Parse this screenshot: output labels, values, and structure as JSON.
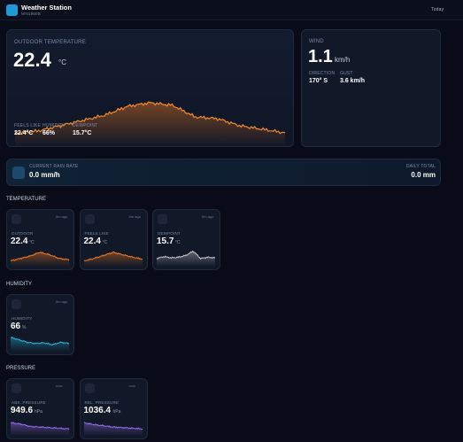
{
  "header": {
    "title": "Weather Station",
    "subtitle": "WN1980B",
    "range": "Today"
  },
  "outdoor": {
    "label": "OUTDOOR TEMPERATURE",
    "value": "22.4",
    "unit": "°C",
    "stats": [
      {
        "label": "FEELS LIKE",
        "value": "22.4°C"
      },
      {
        "label": "HUMIDITY",
        "value": "66%"
      },
      {
        "label": "DEWPOINT",
        "value": "15.7°C"
      }
    ]
  },
  "wind": {
    "label": "WIND",
    "value": "1.1",
    "unit": "km/h",
    "stats": [
      {
        "label": "DIRECTION",
        "value": "170° S"
      },
      {
        "label": "GUST",
        "value": "3.6 km/h"
      }
    ]
  },
  "rain": {
    "label": "CURRENT RAIN RATE",
    "value": "0.0 mm/h",
    "total_label": "DAILY TOTAL",
    "total": "0.0 mm"
  },
  "sections": [
    {
      "title": "TEMPERATURE",
      "cards": [
        {
          "age": "5m ago",
          "label": "OUTDOOR",
          "value": "22.4",
          "unit": "°C"
        },
        {
          "age": "5m ago",
          "label": "FEELS LIKE",
          "value": "22.4",
          "unit": "°C"
        },
        {
          "age": "5m ago",
          "label": "DEWPOINT",
          "value": "15.7",
          "unit": "°C"
        }
      ]
    },
    {
      "title": "HUMIDITY",
      "cards": [
        {
          "age": "5m ago",
          "label": "HUMIDITY",
          "value": "66",
          "unit": "%"
        }
      ]
    },
    {
      "title": "PRESSURE",
      "cards": [
        {
          "age": "now",
          "label": "ABS. PRESSURE",
          "value": "949.6",
          "unit": "hPa"
        },
        {
          "age": "now",
          "label": "REL. PRESSURE",
          "value": "1036.4",
          "unit": "hPa"
        }
      ]
    }
  ]
}
